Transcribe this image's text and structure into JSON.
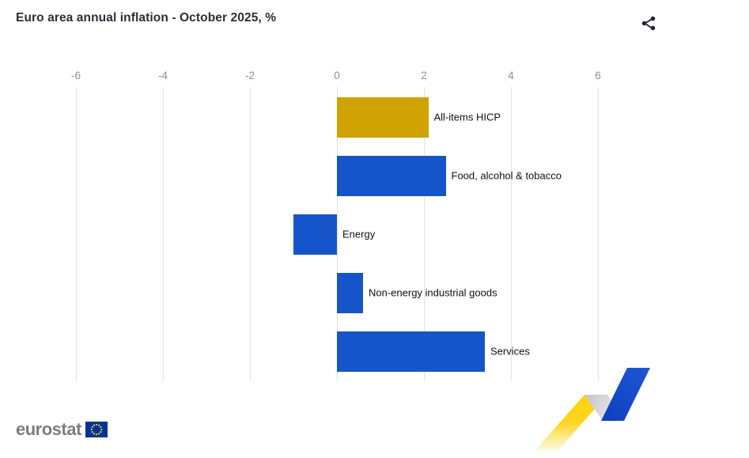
{
  "header": {
    "title": "Euro area annual inflation - October 2025, %"
  },
  "chart_data": {
    "type": "bar",
    "orientation": "horizontal",
    "title": "Euro area annual inflation - October 2025, %",
    "categories": [
      "All-items HICP",
      "Food, alcohol & tobacco",
      "Energy",
      "Non-energy industrial goods",
      "Services"
    ],
    "values": [
      2.1,
      2.5,
      -1.0,
      0.6,
      3.4
    ],
    "bar_colors": [
      "#d0a202",
      "#1655c9",
      "#1655c9",
      "#1655c9",
      "#1655c9"
    ],
    "xlim": [
      -6,
      6
    ],
    "x_ticks": [
      -6,
      -4,
      -2,
      0,
      2,
      4,
      6
    ],
    "grid": true,
    "legend": "none",
    "value_unit": "%"
  },
  "footer": {
    "logo_text": "eurostat"
  },
  "icons": {
    "share": "share-icon",
    "eu_flag": "eu-flag-icon",
    "decoration": "trend-arrow-motif"
  },
  "colors": {
    "accent_gold": "#d0a202",
    "accent_blue": "#1655c9",
    "gridline": "#e1e3e6",
    "axis_label": "#8e8e8e",
    "title_text": "#2b2f38",
    "logo_gray": "#7d7d7d",
    "eu_flag_blue": "#003399",
    "eu_star_yellow": "#ffcc00",
    "motif_yellow": "#ffd211",
    "motif_silver": "#c9c9cf",
    "motif_blue": "#1245c0"
  }
}
